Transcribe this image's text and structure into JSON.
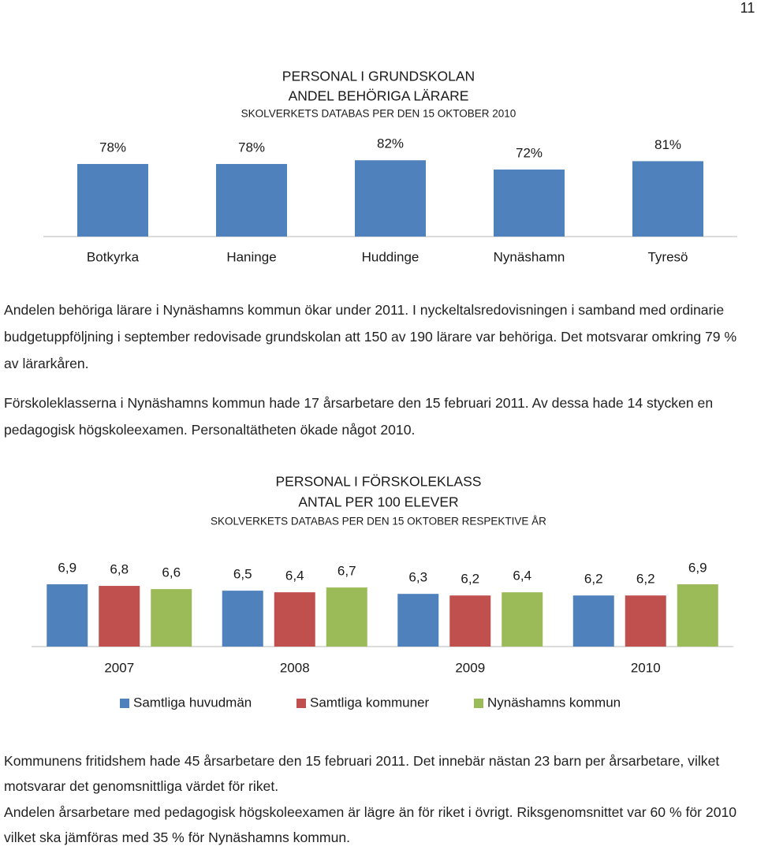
{
  "page_number": "11",
  "chart_data": [
    {
      "type": "bar",
      "title_lines": [
        "PERSONAL I GRUNDSKOLAN",
        "ANDEL BEHÖRIGA LÄRARE"
      ],
      "subtitle": "SKOLVERKETS DATABAS PER DEN 15 OKTOBER 2010",
      "categories": [
        "Botkyrka",
        "Haninge",
        "Huddinge",
        "Nynäshamn",
        "Tyresö"
      ],
      "values": [
        78,
        78,
        82,
        72,
        81
      ],
      "value_labels": [
        "78%",
        "78%",
        "82%",
        "72%",
        "81%"
      ],
      "color": "#4f81bd",
      "ylim": [
        0,
        100
      ]
    },
    {
      "type": "bar",
      "title_lines": [
        "PERSONAL I FÖRSKOLEKLASS",
        "ANTAL PER 100 ELEVER"
      ],
      "subtitle": "SKOLVERKETS DATABAS PER DEN 15 OKTOBER RESPEKTIVE ÅR",
      "categories": [
        "2007",
        "2008",
        "2009",
        "2010"
      ],
      "series": [
        {
          "name": "Samtliga huvudmän",
          "color": "#4f81bd",
          "values": [
            6.9,
            6.5,
            6.3,
            6.2
          ],
          "value_labels": [
            "6,9",
            "6,5",
            "6,3",
            "6,2"
          ]
        },
        {
          "name": "Samtliga kommuner",
          "color": "#c0504d",
          "values": [
            6.8,
            6.4,
            6.2,
            6.2
          ],
          "value_labels": [
            "6,8",
            "6,4",
            "6,2",
            "6,2"
          ]
        },
        {
          "name": "Nynäshamns kommun",
          "color": "#9bbb59",
          "values": [
            6.6,
            6.7,
            6.4,
            6.9
          ],
          "value_labels": [
            "6,6",
            "6,7",
            "6,4",
            "6,9"
          ]
        }
      ],
      "ylim": [
        3,
        7
      ],
      "legend": "bottom"
    }
  ],
  "paragraphs": [
    "Andelen behöriga lärare i Nynäshamns kommun ökar under 2011. I nyckeltalsredovisningen i samband med ordinarie budgetuppföljning i september redovisade grundskolan att 150 av 190 lärare var behöriga. Det motsvarar omkring 79 % av lärarkåren.",
    "Förskoleklasserna i Nynäshamns kommun hade 17 årsarbetare den 15 februari 2011. Av dessa hade 14 stycken en pedagogisk högskoleexamen. Personaltätheten ökade något 2010.",
    "Kommunens fritidshem hade 45 årsarbetare den 15 februari 2011. Det innebär nästan 23 barn per årsarbetare, vilket motsvarar det genomsnittliga värdet för riket.",
    "Andelen årsarbetare med pedagogisk högskoleexamen är lägre än för riket i övrigt. Riksgenomsnittet var 60 % för 2010 vilket ska jämföras med 35 % för Nynäshamns kommun."
  ]
}
